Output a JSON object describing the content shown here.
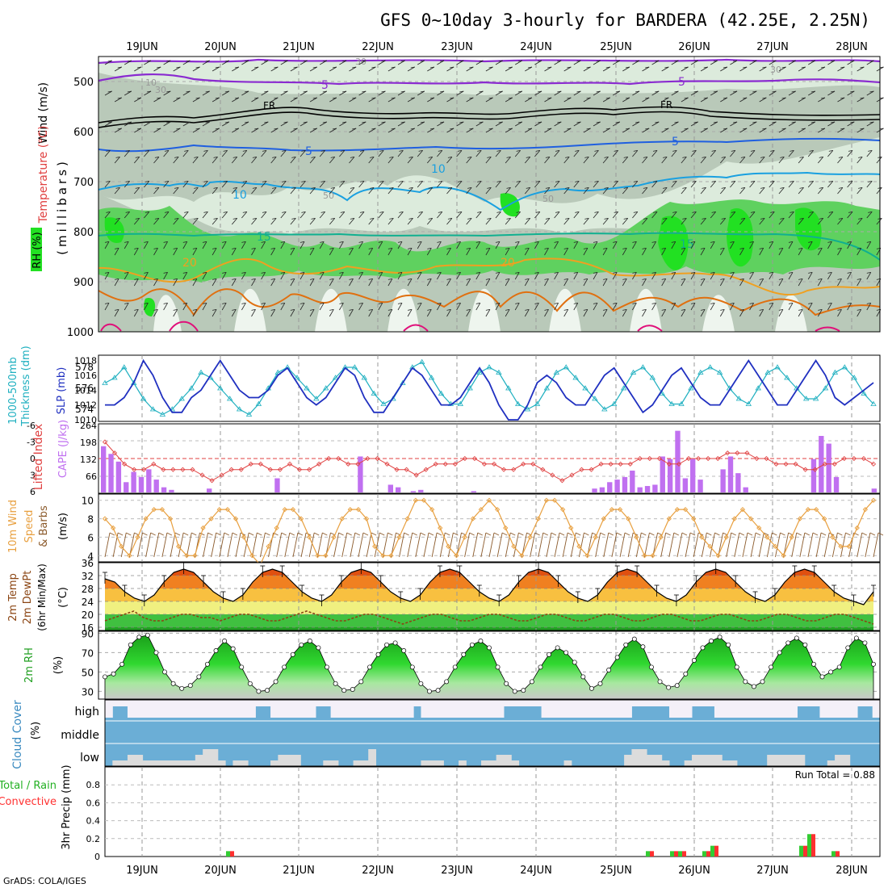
{
  "title": "GFS 0~10day 3-hourly for BARDERA (42.25E, 2.25N)",
  "credit": "GrADS: COLA/IGES",
  "dates": [
    "19JUN",
    "20JUN",
    "21JUN",
    "22JUN",
    "23JUN",
    "24JUN",
    "25JUN",
    "26JUN",
    "27JUN",
    "28JUN"
  ],
  "colors": {
    "rh_light": "#dcebdc",
    "rh_mid": "#b9c9b9",
    "rh_green": "#5fd15f",
    "rh_bright": "#22e022",
    "temp_purple": "#8a2bd0",
    "temp_black": "#000000",
    "temp_blue": "#1f5fe0",
    "temp_cyan": "#1aa0e0",
    "temp_teal": "#10b090",
    "temp_orange": "#f0a020",
    "temp_dorange": "#e07010",
    "temp_magenta": "#e0107a",
    "slp": "#2030c0",
    "thick": "#20b0c0",
    "cape": "#c070f0",
    "li": "#e04040",
    "wind": "#e8a040",
    "barb": "#8b5a2b",
    "temp2m": "#000000",
    "dewpt": "#8b4513",
    "cloud": "#6baed6",
    "cloud_clear": "#f4f0f8",
    "precip_total": "#33cc33",
    "precip_conv": "#ff3030"
  },
  "panels": {
    "upper": {
      "ylabel_wind": "Wind (m/s)",
      "ylabel_temp": "Temperature (°C)",
      "ylabel_rh": "RH (%)",
      "ylabel_unit": "(millibars)",
      "levels": [
        "500",
        "600",
        "700",
        "800",
        "900",
        "1000"
      ],
      "contour_labels": {
        "t5a": "5",
        "t5b": "5",
        "t5c": "5",
        "t5d": "5",
        "t10a": "10",
        "t10b": "10",
        "t15a": "15",
        "t15b": "15",
        "t20a": "20",
        "t20b": "20",
        "fra": "FR",
        "frb": "FR",
        "rh30a": "30",
        "rh30b": "30",
        "rh30c": "30",
        "rh50a": "50",
        "rh50b": "50",
        "rh10": "10"
      }
    },
    "slp": {
      "ylabel_thick": "1000-500mb",
      "ylabel_thick2": "Thickness (dm)",
      "ylabel_slp": "SLP (mb)",
      "left_ticks": [
        "578",
        "576",
        "574"
      ],
      "right_ticks": [
        "1018",
        "1016",
        "1014",
        "1012",
        "1010"
      ]
    },
    "cape": {
      "ylabel_li": "Lifted Index",
      "ylabel_cape": "CAPE (J/kg)",
      "left_ticks": [
        "-6",
        "-3",
        "0",
        "3",
        "6"
      ],
      "right_ticks": [
        "264",
        "198",
        "132",
        "66"
      ]
    },
    "wind": {
      "ylabel1": "10m Wind",
      "ylabel2": "Speed",
      "ylabel3": "& Barbs",
      "ylabel_unit": "(m/s)",
      "ticks": [
        "10",
        "8",
        "6",
        "4"
      ]
    },
    "temp": {
      "ylabel1": "2m Temp",
      "ylabel2": "2m DewPt",
      "ylabel3": "(6hr Min/Max)",
      "ylabel_unit": "(°C)",
      "ticks": [
        "36",
        "32",
        "28",
        "24",
        "20",
        "16"
      ]
    },
    "rh": {
      "ylabel": "2m RH",
      "ylabel_unit": "(%)",
      "ticks": [
        "90",
        "70",
        "50",
        "30"
      ]
    },
    "cloud": {
      "ylabel": "Cloud Cover",
      "ylabel_unit": "(%)",
      "high": "high",
      "middle": "middle",
      "low": "low"
    },
    "precip": {
      "ylabel1": "Total / Rain",
      "ylabel2": "Convective",
      "ylabel3": "3hr Precip (mm)",
      "ticks": [
        "0.8",
        "0.6",
        "0.4",
        "0.2",
        "0"
      ],
      "run_total": "Run Total = 0.88"
    }
  },
  "chart_data": [
    {
      "type": "line",
      "name": "SLP",
      "x_start": "2023-06-18 12Z",
      "x_step_hours": 3,
      "ylim": [
        1010,
        1018.5
      ],
      "values": [
        1012,
        1012,
        1013,
        1015,
        1018,
        1016,
        1013,
        1011,
        1011,
        1013,
        1014,
        1016,
        1018,
        1016,
        1014,
        1013,
        1013,
        1014,
        1016,
        1017,
        1015,
        1013,
        1012,
        1013,
        1015,
        1017,
        1016,
        1013,
        1011,
        1011,
        1013,
        1015,
        1017,
        1016,
        1014,
        1012,
        1012,
        1013,
        1015,
        1017,
        1015,
        1012,
        1010,
        1010,
        1012,
        1015,
        1016,
        1015,
        1013,
        1012,
        1012,
        1014,
        1016,
        1017,
        1015,
        1013,
        1011,
        1012,
        1014,
        1016,
        1017,
        1015,
        1013,
        1012,
        1012,
        1014,
        1016,
        1018,
        1016,
        1014,
        1012,
        1012,
        1014,
        1016,
        1018,
        1016,
        1013,
        1012,
        1013,
        1014,
        1015
      ]
    },
    {
      "type": "line",
      "name": "Thickness",
      "ylim": [
        573,
        579
      ],
      "values": [
        576.5,
        577,
        578,
        576.5,
        575,
        574,
        573.5,
        574,
        575,
        576,
        577.5,
        577,
        576,
        575,
        574,
        573.5,
        574.5,
        576,
        577.5,
        578,
        577,
        576,
        575,
        576,
        577,
        578,
        578,
        577,
        575.5,
        574.5,
        575,
        576.5,
        578,
        578.5,
        577,
        575.5,
        574.5,
        574.5,
        576,
        577.5,
        578,
        577.5,
        576,
        574.5,
        574,
        574.5,
        576,
        577.5,
        578,
        577,
        576,
        575,
        574,
        574.5,
        576,
        577.5,
        578,
        577,
        575.5,
        574.5,
        574.5,
        576,
        577.5,
        578,
        577.5,
        576,
        575,
        574.5,
        576,
        577.5,
        578,
        577,
        576,
        575,
        575,
        576,
        577.5,
        578,
        577,
        575.5,
        574.5
      ]
    },
    {
      "type": "bar",
      "name": "CAPE",
      "ylim": [
        0,
        264
      ],
      "values": [
        180,
        150,
        120,
        40,
        80,
        60,
        90,
        50,
        20,
        10,
        0,
        0,
        0,
        0,
        15,
        0,
        0,
        0,
        0,
        0,
        0,
        0,
        0,
        55,
        0,
        0,
        0,
        0,
        0,
        0,
        0,
        0,
        0,
        0,
        140,
        0,
        0,
        0,
        30,
        20,
        0,
        5,
        10,
        0,
        0,
        0,
        0,
        0,
        0,
        5,
        0,
        0,
        0,
        0,
        0,
        0,
        0,
        0,
        0,
        0,
        0,
        0,
        0,
        0,
        0,
        15,
        20,
        40,
        50,
        60,
        85,
        20,
        25,
        30,
        140,
        130,
        240,
        55,
        130,
        50,
        0,
        0,
        90,
        140,
        75,
        20,
        0,
        0,
        0,
        0,
        0,
        0,
        0,
        0,
        130,
        220,
        190,
        60,
        0,
        0,
        0,
        0,
        15
      ]
    },
    {
      "type": "line",
      "name": "Lifted Index",
      "ylim": [
        -6,
        6
      ],
      "values": [
        -3,
        -1,
        1,
        2,
        2,
        1,
        2,
        2,
        2,
        2,
        3,
        4,
        3,
        2,
        2,
        1,
        1,
        2,
        2,
        1,
        2,
        2,
        1,
        0,
        0,
        1,
        1,
        0,
        0,
        1,
        2,
        2,
        3,
        2,
        1,
        1,
        1,
        0,
        0,
        1,
        1,
        2,
        2,
        1,
        1,
        2,
        3,
        4,
        3,
        2,
        2,
        1,
        1,
        1,
        1,
        0,
        0,
        0,
        1,
        1,
        0,
        0,
        0,
        0,
        -1,
        -1,
        -1,
        0,
        0,
        1,
        1,
        1,
        2,
        2,
        1,
        1,
        0,
        0,
        0,
        1
      ]
    },
    {
      "type": "line",
      "name": "10m Wind Speed",
      "ylim": [
        3.5,
        10.5
      ],
      "values": [
        8,
        7,
        5,
        4,
        6,
        8,
        9,
        9,
        8,
        5,
        4,
        4,
        7,
        8,
        9,
        9,
        8,
        6,
        4,
        3,
        5,
        7,
        9,
        9,
        8,
        6,
        4,
        4,
        6,
        8,
        9,
        9,
        8,
        5,
        4,
        4,
        6,
        8,
        10,
        10,
        9,
        7,
        5,
        4,
        6,
        8,
        9,
        10,
        9,
        7,
        5,
        4,
        6,
        8,
        10,
        10,
        9,
        7,
        5,
        4,
        6,
        8,
        9,
        9,
        8,
        6,
        4,
        4,
        6,
        8,
        9,
        9,
        8,
        6,
        5,
        4,
        6,
        8,
        9,
        8,
        7,
        6,
        5,
        4,
        6,
        8,
        9,
        9,
        8,
        6,
        5,
        5,
        7,
        9,
        10
      ]
    },
    {
      "type": "area",
      "name": "2m Temp",
      "ylim": [
        15,
        36
      ],
      "values": [
        31,
        30,
        27,
        25,
        24,
        26,
        30,
        33,
        34,
        33,
        30,
        27,
        25,
        24,
        26,
        30,
        33,
        34,
        33,
        30,
        27,
        25,
        24,
        26,
        30,
        33,
        34,
        33,
        30,
        27,
        25,
        24,
        26,
        30,
        33,
        34,
        33,
        30,
        27,
        25,
        24,
        26,
        30,
        33,
        34,
        33,
        30,
        27,
        25,
        24,
        26,
        30,
        33,
        34,
        33,
        30,
        27,
        25,
        24,
        26,
        30,
        33,
        34,
        33,
        30,
        27,
        25,
        24,
        26,
        30,
        33,
        34,
        33,
        30,
        27,
        25,
        24,
        23,
        27
      ]
    },
    {
      "type": "line",
      "name": "2m DewPt",
      "ylim": [
        15,
        36
      ],
      "values": [
        18,
        19,
        20,
        21,
        19,
        18,
        18,
        19,
        20,
        20,
        19,
        19,
        18,
        19,
        20,
        20,
        19,
        18,
        18,
        19,
        20,
        21,
        20,
        19,
        18,
        18,
        19,
        20,
        20,
        19,
        18,
        17,
        18,
        19,
        20,
        20,
        19,
        18,
        18,
        19,
        20,
        20,
        19,
        18,
        18,
        19,
        20,
        20,
        19,
        18,
        18,
        19,
        20,
        20,
        19,
        18,
        18,
        19,
        20,
        20,
        19,
        18,
        18,
        19,
        20,
        20,
        19,
        18,
        18,
        19,
        20,
        20,
        19,
        18,
        18,
        19,
        20,
        20,
        19,
        18,
        17
      ]
    },
    {
      "type": "area",
      "name": "2m RH",
      "ylim": [
        22,
        92
      ],
      "values": [
        45,
        48,
        58,
        78,
        86,
        88,
        70,
        50,
        38,
        33,
        36,
        45,
        58,
        72,
        82,
        74,
        55,
        38,
        30,
        31,
        40,
        55,
        68,
        78,
        82,
        75,
        55,
        38,
        31,
        32,
        40,
        55,
        68,
        78,
        80,
        72,
        55,
        38,
        30,
        31,
        40,
        55,
        68,
        78,
        82,
        75,
        55,
        38,
        30,
        31,
        40,
        55,
        68,
        75,
        70,
        60,
        45,
        33,
        38,
        52,
        65,
        78,
        84,
        76,
        55,
        40,
        34,
        36,
        48,
        62,
        75,
        82,
        86,
        78,
        55,
        40,
        35,
        40,
        55,
        70,
        80,
        85,
        78,
        58,
        45,
        50,
        55,
        75,
        85,
        80,
        58
      ]
    },
    {
      "type": "bar",
      "name": "Total Precip",
      "ylim": [
        0,
        1
      ],
      "values": [
        0,
        0,
        0,
        0,
        0,
        0,
        0,
        0,
        0,
        0,
        0,
        0,
        0,
        0,
        0,
        0.06,
        0,
        0,
        0,
        0,
        0,
        0,
        0,
        0,
        0,
        0,
        0,
        0,
        0,
        0,
        0,
        0,
        0,
        0,
        0,
        0,
        0,
        0,
        0,
        0,
        0,
        0,
        0,
        0,
        0,
        0,
        0,
        0,
        0,
        0,
        0,
        0,
        0,
        0,
        0,
        0,
        0,
        0,
        0,
        0,
        0,
        0,
        0,
        0,
        0,
        0,
        0,
        0.06,
        0,
        0,
        0.06,
        0.06,
        0,
        0,
        0.06,
        0.12,
        0,
        0,
        0,
        0,
        0,
        0,
        0,
        0,
        0,
        0,
        0.12,
        0.25,
        0,
        0,
        0.06,
        0,
        0,
        0,
        0,
        0
      ]
    },
    {
      "type": "bar",
      "name": "Convective Precip",
      "ylim": [
        0,
        1
      ],
      "values": [
        0,
        0,
        0,
        0,
        0,
        0,
        0,
        0,
        0,
        0,
        0,
        0,
        0,
        0,
        0,
        0.06,
        0,
        0,
        0,
        0,
        0,
        0,
        0,
        0,
        0,
        0,
        0,
        0,
        0,
        0,
        0,
        0,
        0,
        0,
        0,
        0,
        0,
        0,
        0,
        0,
        0,
        0,
        0,
        0,
        0,
        0,
        0,
        0,
        0,
        0,
        0,
        0,
        0,
        0,
        0,
        0,
        0,
        0,
        0,
        0,
        0,
        0,
        0,
        0,
        0,
        0,
        0,
        0.06,
        0,
        0,
        0.06,
        0.06,
        0,
        0,
        0.06,
        0.12,
        0,
        0,
        0,
        0,
        0,
        0,
        0,
        0,
        0,
        0,
        0.12,
        0.25,
        0,
        0,
        0.06,
        0,
        0,
        0,
        0,
        0
      ]
    }
  ]
}
